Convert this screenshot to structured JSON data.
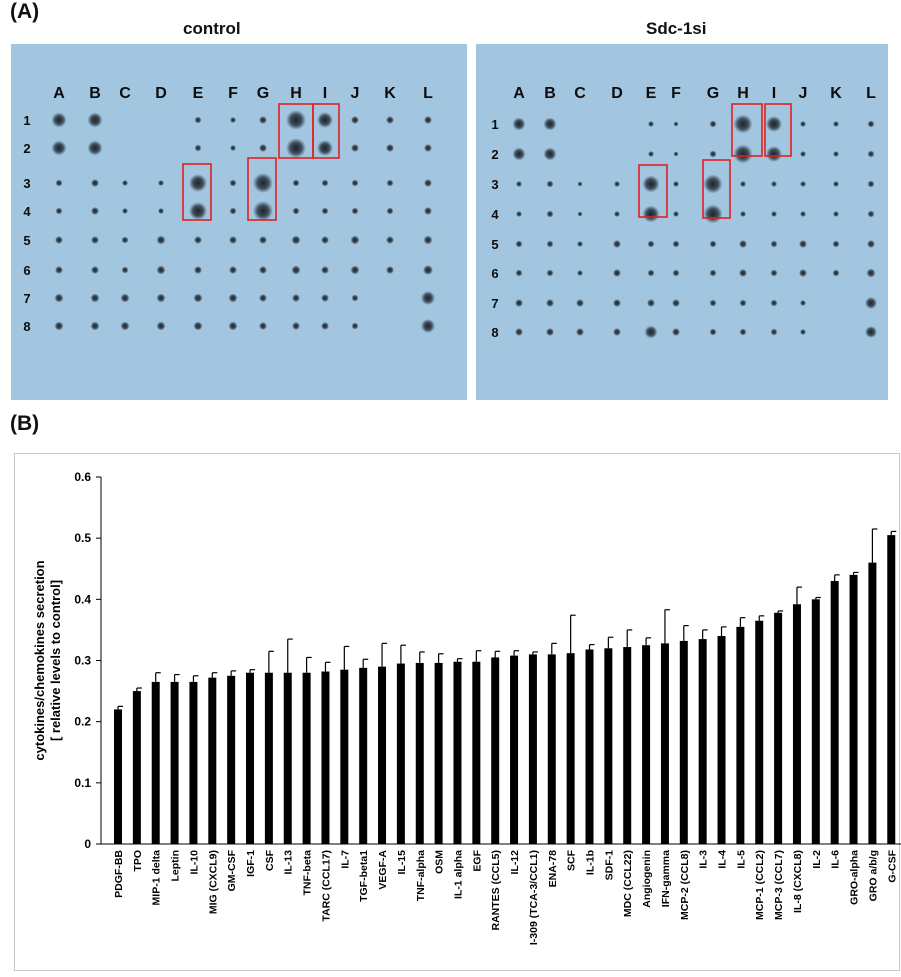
{
  "panel_a": {
    "label": "(A)",
    "blots": [
      {
        "title": "control",
        "columns": [
          "A",
          "B",
          "C",
          "D",
          "E",
          "F",
          "G",
          "H",
          "I",
          "J",
          "K",
          "L"
        ],
        "rows": [
          "1",
          "2",
          "3",
          "4",
          "5",
          "6",
          "7",
          "8"
        ]
      },
      {
        "title": "Sdc-1si",
        "columns": [
          "A",
          "B",
          "C",
          "D",
          "E",
          "F",
          "G",
          "H",
          "I",
          "J",
          "K",
          "L"
        ],
        "rows": [
          "1",
          "2",
          "3",
          "4",
          "5",
          "6",
          "7",
          "8"
        ]
      }
    ],
    "colors": {
      "membrane": "#a9cbe2",
      "spot": "#1c242c",
      "highlight": "#e02020"
    }
  },
  "panel_b": {
    "label": "(B)"
  },
  "chart_data": {
    "type": "bar",
    "title": "",
    "xlabel": "",
    "ylabel": "cytokines/chemokines secretion",
    "ylabel2": "[ relative levels to control]",
    "ylim": [
      0,
      0.6
    ],
    "yticks": [
      "0",
      "0.1",
      "0.2",
      "0.3",
      "0.4",
      "0.5",
      "0.6"
    ],
    "grid": false,
    "bar_color": "#000000",
    "categories": [
      "PDGF-BB",
      "TPO",
      "MIP-1 delta",
      "Leptin",
      "IL-10",
      "MIG (CXCL9)",
      "GM-CSF",
      "IGF-1",
      "CSF",
      "IL-13",
      "TNF-beta",
      "TARC (CCL17)",
      "IL-7",
      "TGF-beta1",
      "VEGF-A",
      "IL-15",
      "TNF-alpha",
      "OSM",
      "IL-1 alpha",
      "EGF",
      "RANTES (CCL5)",
      "IL-12",
      "I-309 (TCA-3/CCL1)",
      "ENA-78",
      "SCF",
      "IL-1b",
      "SDF-1",
      "MDC (CCL22)",
      "Angiogenin",
      "IFN-gamma",
      "MCP-2 (CCL8)",
      "IL-3",
      "IL-4",
      "IL-5",
      "MCP-1 (CCL2)",
      "MCP-3 (CCL7)",
      "IL-8 (CXCL8)",
      "IL-2",
      "IL-6",
      "GRO-alpha",
      "GRO a/b/g",
      "G-CSF"
    ],
    "values": [
      0.22,
      0.25,
      0.265,
      0.265,
      0.265,
      0.272,
      0.275,
      0.28,
      0.28,
      0.28,
      0.28,
      0.282,
      0.285,
      0.288,
      0.29,
      0.295,
      0.296,
      0.296,
      0.298,
      0.298,
      0.305,
      0.308,
      0.31,
      0.31,
      0.312,
      0.318,
      0.32,
      0.322,
      0.325,
      0.328,
      0.332,
      0.335,
      0.34,
      0.355,
      0.365,
      0.378,
      0.392,
      0.4,
      0.43,
      0.44,
      0.46,
      0.505
    ],
    "errors": [
      0.005,
      0.005,
      0.015,
      0.012,
      0.01,
      0.008,
      0.008,
      0.005,
      0.035,
      0.055,
      0.025,
      0.015,
      0.038,
      0.014,
      0.038,
      0.03,
      0.018,
      0.015,
      0.005,
      0.018,
      0.01,
      0.008,
      0.004,
      0.018,
      0.062,
      0.008,
      0.018,
      0.028,
      0.012,
      0.055,
      0.025,
      0.015,
      0.015,
      0.015,
      0.008,
      0.003,
      0.028,
      0.003,
      0.01,
      0.004,
      0.055,
      0.006
    ]
  }
}
